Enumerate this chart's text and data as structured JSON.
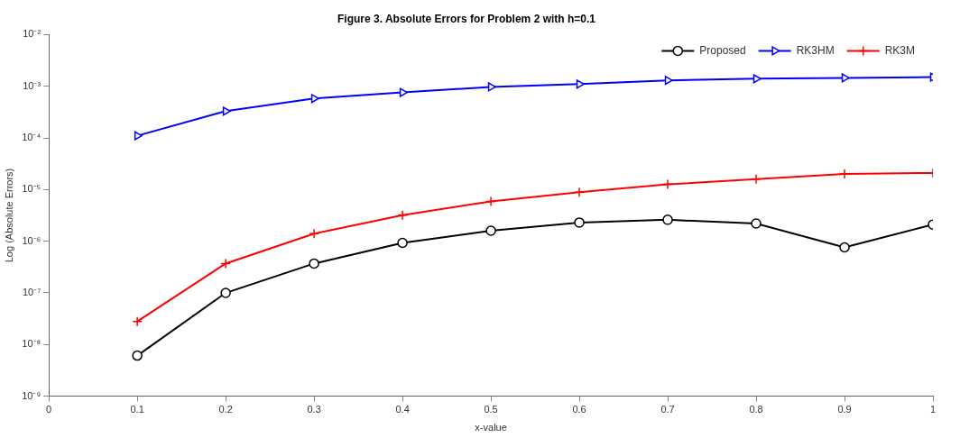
{
  "chart_data": {
    "type": "line",
    "title": "Figure 3. Absolute Errors for Problem 2 with h=0.1",
    "xlabel": "x-value",
    "ylabel": "Log (Absolute Errors)",
    "x": [
      0.1,
      0.2,
      0.3,
      0.4,
      0.5,
      0.6,
      0.7,
      0.8,
      0.9,
      1
    ],
    "series": [
      {
        "name": "Proposed",
        "color": "#000000",
        "marker": "circle",
        "values": [
          6.1e-09,
          1e-07,
          3.7e-07,
          9.3e-07,
          1.6e-06,
          2.3e-06,
          2.6e-06,
          2.2e-06,
          7.6e-07,
          2.1e-06
        ]
      },
      {
        "name": "RK3HM",
        "color": "#0000ff",
        "marker": "triangle",
        "values": [
          0.00011,
          0.00033,
          0.00058,
          0.00076,
          0.00097,
          0.0011,
          0.0013,
          0.0014,
          0.00145,
          0.0015
        ]
      },
      {
        "name": "RK3M",
        "color": "#ff0000",
        "marker": "cross",
        "values": [
          2.8e-08,
          3.7e-07,
          1.4e-06,
          3.2e-06,
          5.9e-06,
          8.9e-06,
          1.26e-05,
          1.6e-05,
          2e-05,
          2.1e-05
        ]
      }
    ],
    "log": "y",
    "xlim": [
      0,
      1
    ],
    "xticks": [
      0,
      0.1,
      0.2,
      0.3,
      0.4,
      0.5,
      0.6,
      0.7,
      0.8,
      0.9,
      1
    ],
    "ylim": [
      1e-09,
      0.01
    ],
    "yticks": [
      {
        "value": 1e-09,
        "label": "10⁻⁹"
      },
      {
        "value": 1e-08,
        "label": "10⁻⁸"
      },
      {
        "value": 1e-07,
        "label": "10⁻⁷"
      },
      {
        "value": 1e-06,
        "label": "10⁻⁶"
      },
      {
        "value": 1e-05,
        "label": "10⁻⁵"
      },
      {
        "value": 0.0001,
        "label": "10⁻⁴"
      },
      {
        "value": 0.001,
        "label": "10⁻³"
      },
      {
        "value": 0.01,
        "label": "10⁻²"
      }
    ],
    "grid": false,
    "legend": "top right",
    "line_style": "solid"
  }
}
